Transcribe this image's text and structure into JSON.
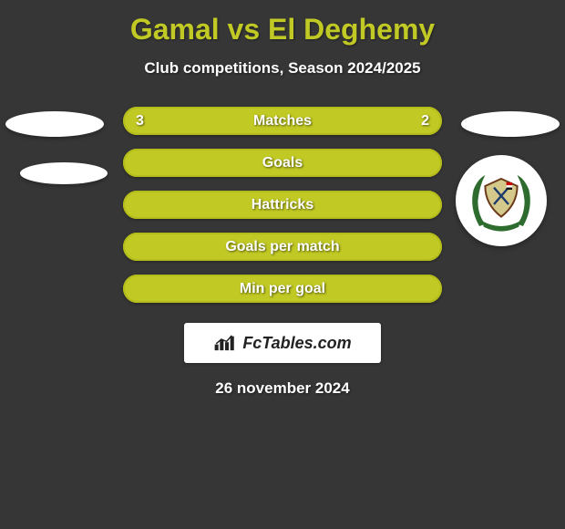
{
  "title": "Gamal vs El Deghemy",
  "subtitle": "Club competitions, Season 2024/2025",
  "date": "26 november 2024",
  "brand": "FcTables.com",
  "colors": {
    "accent": "#c1c924",
    "accent_border": "#b4bc1b",
    "bg": "#363636",
    "white": "#ffffff",
    "text": "#ffffff"
  },
  "badge": {
    "wreath_color": "#2e6b2e",
    "shield_fill": "#d4c98a",
    "shield_border": "#6b3a1a",
    "cross_color": "#1a3a6b",
    "banner_color": "#2e6b2e",
    "flag_red": "#cc0000",
    "flag_black": "#111111"
  },
  "rows": [
    {
      "label": "Matches",
      "left": "3",
      "right": "2",
      "fill_style": "split",
      "left_fill": "#c1c924",
      "right_fill": "#c1c924",
      "border_color": "#b4bc1b"
    },
    {
      "label": "Goals",
      "left": "",
      "right": "",
      "fill_style": "outline",
      "fill_color": "#c1c924",
      "border_color": "#b4bc1b"
    },
    {
      "label": "Hattricks",
      "left": "",
      "right": "",
      "fill_style": "outline",
      "fill_color": "#c1c924",
      "border_color": "#b4bc1b"
    },
    {
      "label": "Goals per match",
      "left": "",
      "right": "",
      "fill_style": "outline",
      "fill_color": "#c1c924",
      "border_color": "#b4bc1b"
    },
    {
      "label": "Min per goal",
      "left": "",
      "right": "",
      "fill_style": "outline",
      "fill_color": "#c1c924",
      "border_color": "#b4bc1b"
    }
  ]
}
